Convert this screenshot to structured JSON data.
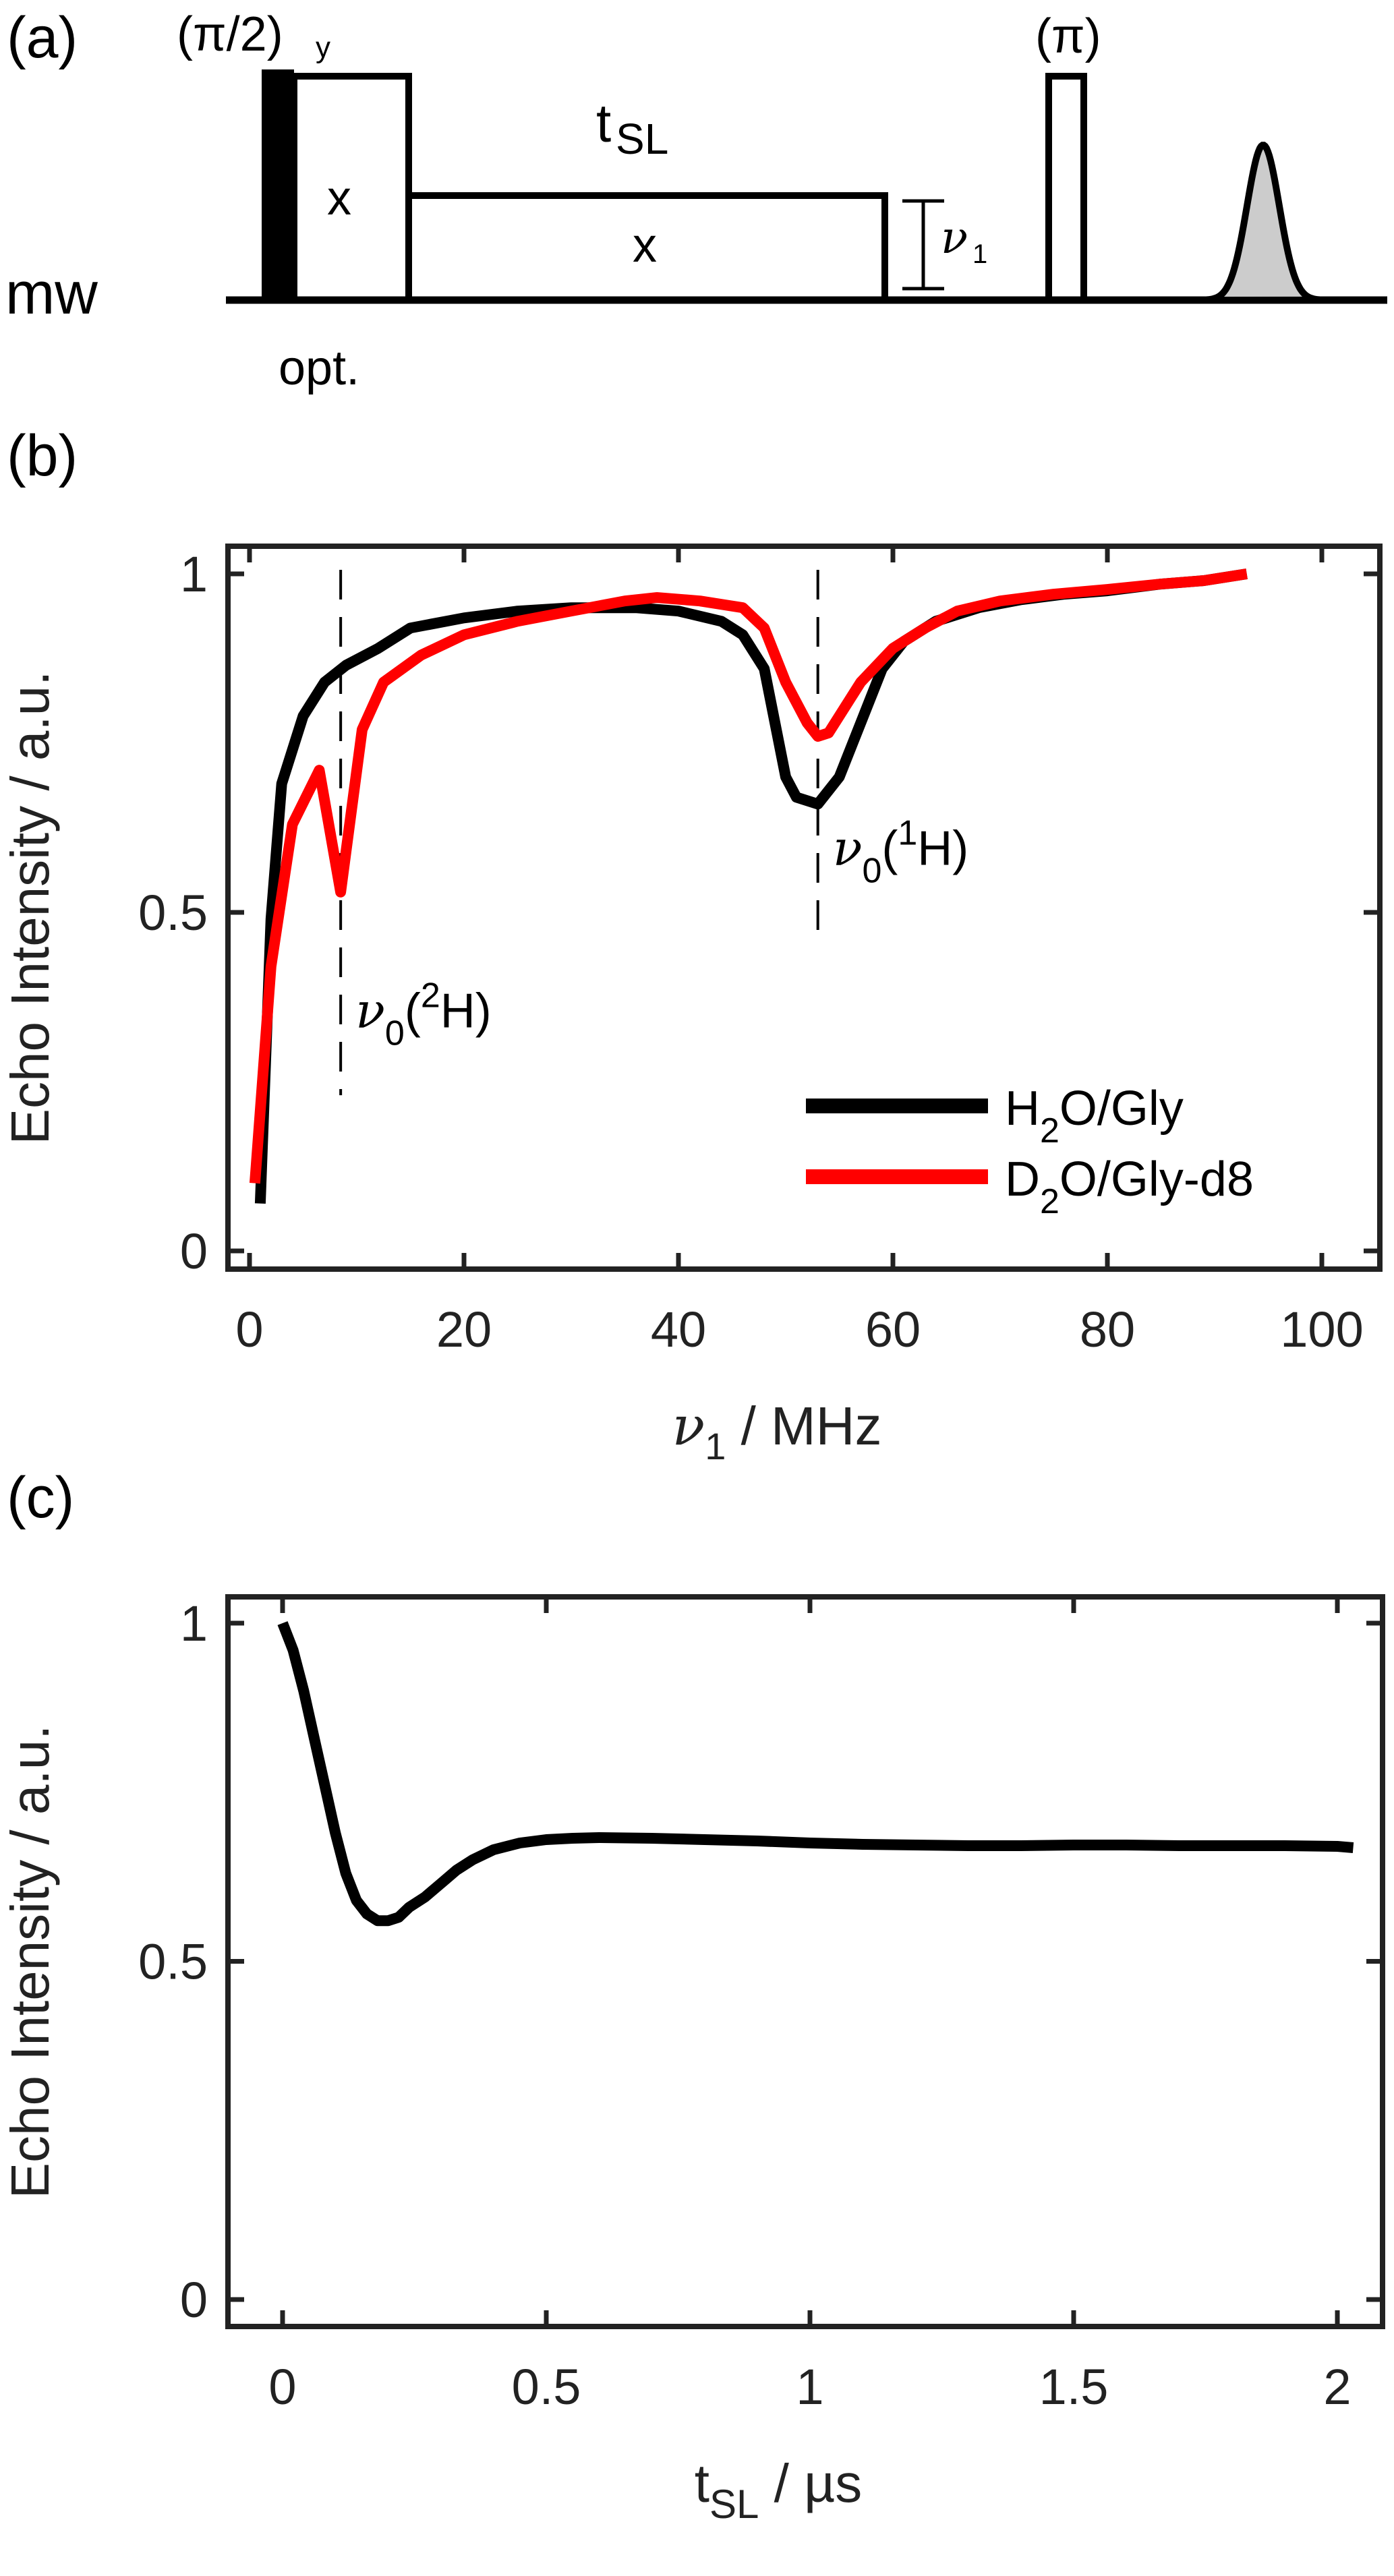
{
  "figure": {
    "panel_labels": [
      "(a)",
      "(b)",
      "(c)"
    ]
  },
  "pulse_sequence": {
    "channel_label": "mw",
    "first_pulse_label_main": "(π/2)",
    "first_pulse_label_sub": "y",
    "first_pulse_phase": "x",
    "first_pulse_note": "opt.",
    "spinlock_label_main": "t",
    "spinlock_label_sub": "SL",
    "spinlock_phase": "x",
    "amplitude_label_main": "ν",
    "amplitude_label_sub": "1",
    "pi_pulse_label": "(π)",
    "echo_fill_color": "#cccccc"
  },
  "chart_data": [
    {
      "panel": "(b)",
      "type": "line",
      "title": "",
      "xlabel": "ν1 / MHz",
      "xlabel_parts": {
        "symbol": "ν",
        "sub": "1",
        "rest": " / MHz"
      },
      "ylabel": "Echo Intensity / a.u.",
      "xlim": [
        -1,
        104
      ],
      "ylim": [
        -0.03,
        1.07
      ],
      "xticks": [
        0,
        20,
        40,
        60,
        80,
        100
      ],
      "xtick_labels": [
        "0",
        "20",
        "40",
        "60",
        "80",
        "100"
      ],
      "yticks": [
        0,
        0.5,
        1
      ],
      "ytick_labels": [
        "0",
        "0.5",
        "1"
      ],
      "grid": false,
      "legend_position": "lower-right",
      "series": [
        {
          "name": "H2O/Gly",
          "legend_main": "H",
          "legend_sub": "2",
          "legend_rest": "O/Gly",
          "color": "#000000",
          "x": [
            1,
            2,
            3,
            5,
            7,
            9,
            12,
            15,
            20,
            25,
            30,
            36,
            40,
            44,
            46,
            48,
            50,
            51,
            53,
            55,
            57,
            59,
            61,
            64,
            68,
            72,
            76,
            80,
            85,
            89,
            93
          ],
          "y": [
            0.07,
            0.49,
            0.69,
            0.79,
            0.84,
            0.865,
            0.89,
            0.92,
            0.935,
            0.945,
            0.95,
            0.95,
            0.945,
            0.93,
            0.91,
            0.86,
            0.7,
            0.67,
            0.66,
            0.7,
            0.78,
            0.86,
            0.9,
            0.93,
            0.95,
            0.962,
            0.97,
            0.975,
            0.985,
            0.99,
            1.0
          ]
        },
        {
          "name": "D2O/Gly-d8",
          "legend_main": "D",
          "legend_sub": "2",
          "legend_rest": "O/Gly-d8",
          "color": "#ff0000",
          "x": [
            0.5,
            2,
            4,
            6.5,
            8.5,
            10.5,
            12.5,
            16,
            20,
            25,
            30,
            35,
            38,
            42,
            46,
            48,
            50,
            52,
            53,
            54,
            57,
            60,
            63,
            66,
            70,
            75,
            80,
            85,
            89,
            93
          ],
          "y": [
            0.1,
            0.42,
            0.63,
            0.71,
            0.53,
            0.77,
            0.84,
            0.88,
            0.91,
            0.93,
            0.945,
            0.96,
            0.965,
            0.96,
            0.95,
            0.92,
            0.84,
            0.78,
            0.76,
            0.765,
            0.84,
            0.89,
            0.92,
            0.945,
            0.96,
            0.97,
            0.977,
            0.985,
            0.99,
            1.0
          ]
        }
      ],
      "annotations": [
        {
          "x": 8.5,
          "label_symbol": "ν",
          "label_sub": "0",
          "label_open": "(",
          "label_sup": "2",
          "label_rest": "H)",
          "label_y": 0.33
        },
        {
          "x": 53,
          "label_symbol": "ν",
          "label_sub": "0",
          "label_open": "(",
          "label_sup": "1",
          "label_rest": "H)",
          "label_y": 0.57
        }
      ]
    },
    {
      "panel": "(c)",
      "type": "line",
      "title": "",
      "xlabel": "tSL / µs",
      "xlabel_parts": {
        "main": "t",
        "sub": "SL",
        "rest": " / µs"
      },
      "ylabel": "Echo Intensity / a.u.",
      "xlim": [
        -0.1,
        2.1
      ],
      "ylim": [
        -0.03,
        1.05
      ],
      "xticks": [
        0,
        0.5,
        1,
        1.5,
        2
      ],
      "xtick_labels": [
        "0",
        "0.5",
        "1",
        "1.5",
        "2"
      ],
      "yticks": [
        0,
        0.5,
        1
      ],
      "ytick_labels": [
        "0",
        "0.5",
        "1"
      ],
      "grid": false,
      "series": [
        {
          "name": "echo",
          "color": "#000000",
          "x": [
            0,
            0.02,
            0.04,
            0.06,
            0.08,
            0.1,
            0.12,
            0.14,
            0.16,
            0.18,
            0.2,
            0.22,
            0.24,
            0.27,
            0.3,
            0.33,
            0.36,
            0.4,
            0.45,
            0.5,
            0.55,
            0.6,
            0.7,
            0.8,
            0.9,
            1.0,
            1.1,
            1.2,
            1.3,
            1.4,
            1.5,
            1.6,
            1.7,
            1.8,
            1.9,
            2.0,
            2.03
          ],
          "y": [
            1.0,
            0.96,
            0.9,
            0.83,
            0.76,
            0.69,
            0.63,
            0.59,
            0.57,
            0.56,
            0.56,
            0.565,
            0.58,
            0.595,
            0.615,
            0.635,
            0.65,
            0.665,
            0.675,
            0.68,
            0.682,
            0.683,
            0.682,
            0.68,
            0.678,
            0.675,
            0.673,
            0.672,
            0.671,
            0.671,
            0.672,
            0.672,
            0.671,
            0.671,
            0.671,
            0.67,
            0.668
          ]
        }
      ]
    }
  ]
}
